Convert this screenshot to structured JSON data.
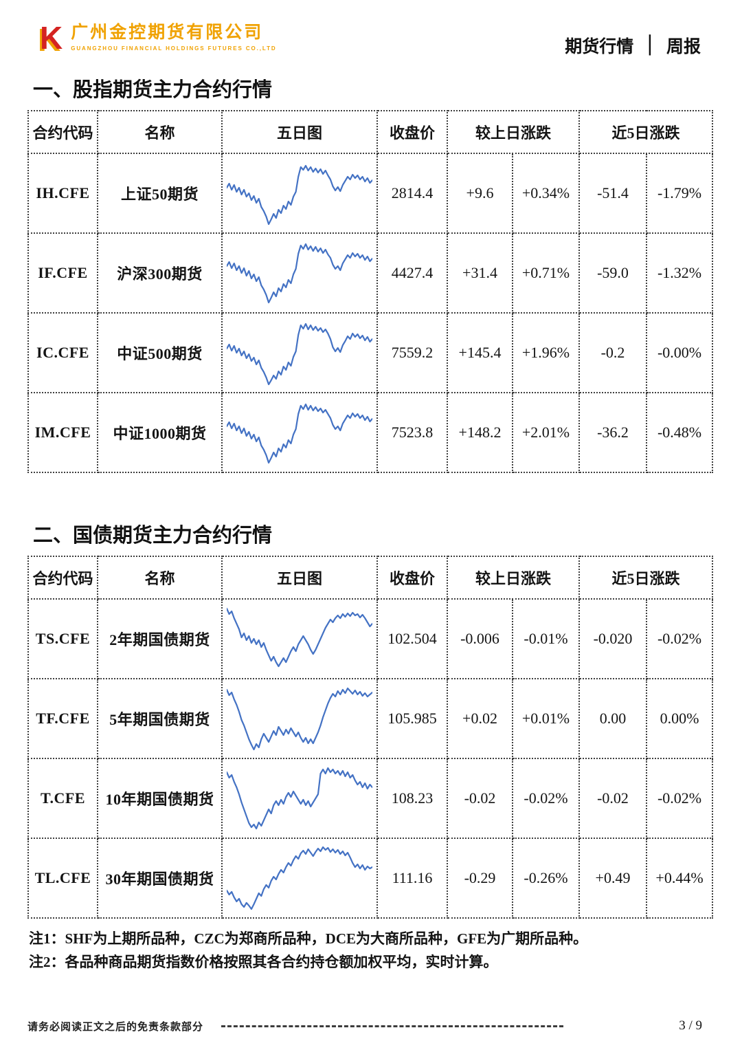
{
  "header": {
    "logo": {
      "mark": "K",
      "company_cn": "广州金控期货有限公司",
      "company_en": "GUANGZHOU FINANCIAL HOLDINGS FUTURES CO.,LTD"
    },
    "report_type": "期货行情",
    "separator": "│",
    "report_cycle": "周报"
  },
  "theme": {
    "up_color": "#d9261f",
    "down_color": "#6b9a60",
    "flat_color": "#1a1a1a",
    "spark_color": "#4472c4",
    "logo_red": "#d42322",
    "logo_gold": "#f0a202"
  },
  "tables": [
    {
      "title": "一、股指期货主力合约行情",
      "headers": {
        "code": "合约代码",
        "name": "名称",
        "chart": "五日图",
        "close": "收盘价",
        "day": "较上日涨跌",
        "five_day": "近5日涨跌"
      },
      "rows": [
        {
          "code": "IH.CFE",
          "name": "上证50期货",
          "close": "2814.4",
          "d_val": "+9.6",
          "d_val_dir": "up",
          "d_pct": "+0.34%",
          "d_pct_dir": "up",
          "f_val": "-51.4",
          "f_val_dir": "down",
          "f_pct": "-1.79%",
          "f_pct_dir": "down",
          "spark": [
            42,
            36,
            45,
            38,
            48,
            42,
            52,
            45,
            55,
            50,
            60,
            54,
            64,
            58,
            70,
            76,
            84,
            95,
            88,
            80,
            86,
            74,
            79,
            68,
            73,
            62,
            67,
            55,
            48,
            26,
            12,
            16,
            10,
            17,
            12,
            19,
            14,
            20,
            15,
            22,
            17,
            24,
            30,
            40,
            46,
            41,
            47,
            38,
            32,
            26,
            30,
            23,
            28,
            24,
            30,
            26,
            33,
            28,
            35,
            31
          ]
        },
        {
          "code": "IF.CFE",
          "name": "沪深300期货",
          "close": "4427.4",
          "d_val": "+31.4",
          "d_val_dir": "up",
          "d_pct": "+0.71%",
          "d_pct_dir": "up",
          "f_val": "-59.0",
          "f_val_dir": "down",
          "f_pct": "-1.32%",
          "f_pct_dir": "down",
          "spark": [
            40,
            34,
            43,
            36,
            46,
            40,
            50,
            43,
            54,
            47,
            58,
            52,
            62,
            56,
            68,
            74,
            82,
            93,
            86,
            78,
            84,
            72,
            77,
            66,
            71,
            60,
            65,
            52,
            44,
            22,
            10,
            15,
            8,
            16,
            11,
            18,
            12,
            19,
            14,
            21,
            16,
            23,
            28,
            38,
            44,
            40,
            46,
            36,
            30,
            24,
            28,
            21,
            26,
            22,
            28,
            24,
            31,
            26,
            33,
            29
          ]
        },
        {
          "code": "IC.CFE",
          "name": "中证500期货",
          "close": "7559.2",
          "d_val": "+145.4",
          "d_val_dir": "up",
          "d_pct": "+1.96%",
          "d_pct_dir": "up",
          "f_val": "-0.2",
          "f_val_dir": "down",
          "f_pct": "-0.00%",
          "f_pct_dir": "down",
          "spark": [
            44,
            38,
            47,
            40,
            50,
            44,
            54,
            48,
            58,
            52,
            62,
            57,
            67,
            61,
            72,
            78,
            86,
            96,
            90,
            83,
            88,
            77,
            82,
            70,
            75,
            64,
            69,
            56,
            48,
            24,
            10,
            15,
            8,
            16,
            10,
            17,
            12,
            18,
            14,
            20,
            16,
            22,
            30,
            42,
            48,
            43,
            49,
            39,
            33,
            26,
            30,
            22,
            27,
            23,
            29,
            25,
            32,
            27,
            34,
            30
          ]
        },
        {
          "code": "IM.CFE",
          "name": "中证1000期货",
          "close": "7523.8",
          "d_val": "+148.2",
          "d_val_dir": "up",
          "d_pct": "+2.01%",
          "d_pct_dir": "up",
          "f_val": "-36.2",
          "f_val_dir": "down",
          "f_pct": "-0.48%",
          "f_pct_dir": "down",
          "spark": [
            41,
            35,
            44,
            37,
            47,
            41,
            51,
            44,
            55,
            49,
            59,
            53,
            63,
            57,
            69,
            75,
            83,
            94,
            87,
            79,
            85,
            73,
            78,
            67,
            72,
            61,
            66,
            53,
            45,
            23,
            11,
            16,
            9,
            17,
            11,
            18,
            13,
            19,
            15,
            21,
            17,
            23,
            29,
            39,
            45,
            41,
            47,
            37,
            31,
            25,
            29,
            22,
            27,
            23,
            29,
            25,
            32,
            27,
            34,
            30
          ]
        }
      ]
    },
    {
      "title": "二、国债期货主力合约行情",
      "headers": {
        "code": "合约代码",
        "name": "名称",
        "chart": "五日图",
        "close": "收盘价",
        "day": "较上日涨跌",
        "five_day": "近5日涨跌"
      },
      "rows": [
        {
          "code": "TS.CFE",
          "name": "2年期国债期货",
          "close": "102.504",
          "d_val": "-0.006",
          "d_val_dir": "down",
          "d_pct": "-0.01%",
          "d_pct_dir": "down",
          "f_val": "-0.020",
          "f_val_dir": "down",
          "f_pct": "-0.02%",
          "f_pct_dir": "down",
          "spark": [
            6,
            14,
            10,
            20,
            28,
            36,
            48,
            42,
            52,
            46,
            56,
            50,
            58,
            52,
            62,
            56,
            66,
            74,
            82,
            76,
            84,
            90,
            84,
            78,
            84,
            76,
            68,
            62,
            68,
            58,
            52,
            46,
            52,
            58,
            66,
            72,
            66,
            58,
            50,
            42,
            34,
            28,
            22,
            26,
            20,
            16,
            20,
            14,
            18,
            13,
            17,
            12,
            16,
            14,
            19,
            15,
            20,
            26,
            32,
            28
          ]
        },
        {
          "code": "TF.CFE",
          "name": "5年期国债期货",
          "close": "105.985",
          "d_val": "+0.02",
          "d_val_dir": "up",
          "d_pct": "+0.01%",
          "d_pct_dir": "up",
          "f_val": "0.00",
          "f_val_dir": "flat",
          "f_pct": "0.00%",
          "f_pct_dir": "flat",
          "spark": [
            8,
            16,
            12,
            22,
            30,
            40,
            52,
            60,
            70,
            80,
            88,
            95,
            87,
            92,
            80,
            72,
            78,
            84,
            76,
            68,
            74,
            62,
            68,
            74,
            66,
            72,
            64,
            70,
            76,
            70,
            78,
            84,
            78,
            86,
            80,
            86,
            78,
            70,
            60,
            48,
            38,
            28,
            20,
            14,
            18,
            10,
            15,
            8,
            13,
            6,
            10,
            14,
            9,
            15,
            11,
            17,
            13,
            18,
            15,
            12
          ]
        },
        {
          "code": "T.CFE",
          "name": "10年期国债期货",
          "close": "108.23",
          "d_val": "-0.02",
          "d_val_dir": "down",
          "d_pct": "-0.02%",
          "d_pct_dir": "down",
          "f_val": "-0.02",
          "f_val_dir": "down",
          "f_pct": "-0.02%",
          "f_pct_dir": "down",
          "spark": [
            12,
            20,
            16,
            26,
            34,
            44,
            56,
            66,
            76,
            86,
            92,
            88,
            94,
            85,
            90,
            82,
            74,
            66,
            72,
            60,
            54,
            60,
            52,
            58,
            48,
            42,
            48,
            40,
            46,
            52,
            58,
            52,
            60,
            54,
            62,
            56,
            50,
            44,
            14,
            8,
            14,
            6,
            12,
            8,
            14,
            10,
            16,
            10,
            18,
            12,
            20,
            16,
            24,
            30,
            26,
            34,
            28,
            36,
            30,
            34
          ]
        },
        {
          "code": "TL.CFE",
          "name": "30年期国债期货",
          "close": "111.16",
          "d_val": "-0.29",
          "d_val_dir": "down",
          "d_pct": "-0.26%",
          "d_pct_dir": "down",
          "f_val": "+0.49",
          "f_val_dir": "up",
          "f_pct": "+0.44%",
          "f_pct_dir": "up",
          "spark": [
            68,
            74,
            70,
            78,
            84,
            80,
            88,
            92,
            86,
            90,
            95,
            88,
            80,
            72,
            76,
            66,
            60,
            64,
            54,
            48,
            52,
            44,
            38,
            42,
            34,
            28,
            32,
            24,
            18,
            22,
            14,
            10,
            15,
            8,
            13,
            18,
            12,
            7,
            11,
            5,
            9,
            6,
            12,
            8,
            13,
            9,
            15,
            11,
            17,
            13,
            20,
            28,
            34,
            30,
            36,
            31,
            38,
            33,
            36,
            34
          ]
        }
      ]
    }
  ],
  "notes": [
    "注1：SHF为上期所品种，CZC为郑商所品种，DCE为大商所品种，GFE为广期所品种。",
    "注2：各品种商品期货指数价格按照其各合约持仓额加权平均，实时计算。"
  ],
  "footer": {
    "disclaimer": "请务必阅读正文之后的免责条款部分",
    "page": "3 / 9"
  }
}
